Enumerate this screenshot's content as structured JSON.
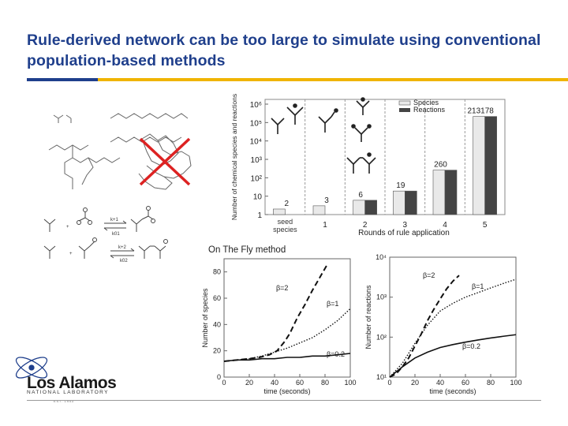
{
  "slide": {
    "title": "Rule-derived network can be too large to simulate using conventional population-based methods"
  },
  "reaction_scheme": {
    "forward_1": "k+1",
    "reverse_1": "k01",
    "forward_2": "k+2",
    "reverse_2": "k02",
    "plus": "+"
  },
  "logo": {
    "name": "Los Alamos",
    "subtitle": "NATIONAL LABORATORY",
    "est": "EST. 1943",
    "mark": "atom-logo-icon"
  },
  "colors": {
    "title": "#1f3f8c",
    "rule": "#f0b400",
    "species_bar": "#e9e9e9",
    "reactions_bar": "#444444",
    "cross": "#dd2222"
  },
  "chart_data": [
    {
      "type": "bar",
      "ylabel": "Number of chemical species and reactions",
      "xlabel": "Rounds of rule application",
      "categories": [
        "seed species",
        "1",
        "2",
        "3",
        "4",
        "5"
      ],
      "y_scale": "log",
      "ylim": [
        1,
        1000000
      ],
      "y_ticks": [
        "1",
        "10",
        "10²",
        "10³",
        "10⁴",
        "10⁵",
        "10⁶"
      ],
      "series": [
        {
          "name": "Species",
          "color": "#e9e9e9",
          "values": [
            2,
            3,
            6,
            19,
            260,
            213178
          ]
        },
        {
          "name": "Reactions",
          "color": "#444444",
          "values": [
            null,
            null,
            6,
            19,
            260,
            213178
          ]
        }
      ],
      "data_labels": [
        "2",
        "3",
        "6",
        "19",
        "260",
        "213178"
      ],
      "legend": "top-right"
    },
    {
      "type": "line",
      "title": "On The Fly method",
      "xlabel": "time (seconds)",
      "ylabel": "Number of species",
      "xlim": [
        0,
        100
      ],
      "ylim": [
        0,
        90
      ],
      "x_ticks": [
        "0",
        "20",
        "40",
        "60",
        "80",
        "100"
      ],
      "y_ticks": [
        "0",
        "20",
        "40",
        "60",
        "80"
      ],
      "series": [
        {
          "name": "β=2",
          "style": "dashed",
          "x": [
            0,
            10,
            20,
            28,
            36,
            42,
            48,
            52,
            58,
            64,
            70,
            76,
            82
          ],
          "y": [
            12,
            13,
            14,
            15,
            17,
            20,
            27,
            33,
            45,
            55,
            66,
            76,
            86
          ]
        },
        {
          "name": "β=1",
          "style": "dotted",
          "x": [
            0,
            10,
            20,
            30,
            40,
            50,
            60,
            70,
            80,
            90,
            100
          ],
          "y": [
            12,
            13,
            14,
            16,
            19,
            22,
            26,
            30,
            36,
            43,
            52
          ]
        },
        {
          "name": "β=0.2",
          "style": "solid",
          "x": [
            0,
            10,
            20,
            30,
            40,
            50,
            60,
            70,
            80,
            90,
            100
          ],
          "y": [
            12,
            13,
            13,
            14,
            14,
            15,
            15,
            16,
            16,
            17,
            18
          ]
        }
      ]
    },
    {
      "type": "line",
      "xlabel": "time (seconds)",
      "ylabel": "Number of reactions",
      "y_scale": "log",
      "xlim": [
        0,
        100
      ],
      "ylim": [
        10,
        10000
      ],
      "x_ticks": [
        "0",
        "20",
        "40",
        "60",
        "80",
        "100"
      ],
      "y_ticks": [
        "10¹",
        "10²",
        "10³",
        "10⁴"
      ],
      "series": [
        {
          "name": "β=2",
          "style": "dashed",
          "x": [
            0,
            5,
            10,
            15,
            20,
            25,
            30,
            35,
            40,
            45,
            50,
            55
          ],
          "y": [
            10,
            12,
            18,
            30,
            60,
            120,
            260,
            500,
            900,
            1600,
            2500,
            3500
          ]
        },
        {
          "name": "β=1",
          "style": "dotted",
          "x": [
            0,
            10,
            20,
            30,
            40,
            50,
            60,
            70,
            80,
            90,
            100
          ],
          "y": [
            10,
            22,
            70,
            200,
            450,
            700,
            1000,
            1300,
            1700,
            2200,
            2800
          ]
        },
        {
          "name": "β=0.2",
          "style": "solid",
          "x": [
            0,
            10,
            20,
            30,
            40,
            50,
            60,
            70,
            80,
            90,
            100
          ],
          "y": [
            10,
            18,
            30,
            42,
            55,
            65,
            75,
            85,
            95,
            105,
            115
          ]
        }
      ]
    }
  ]
}
